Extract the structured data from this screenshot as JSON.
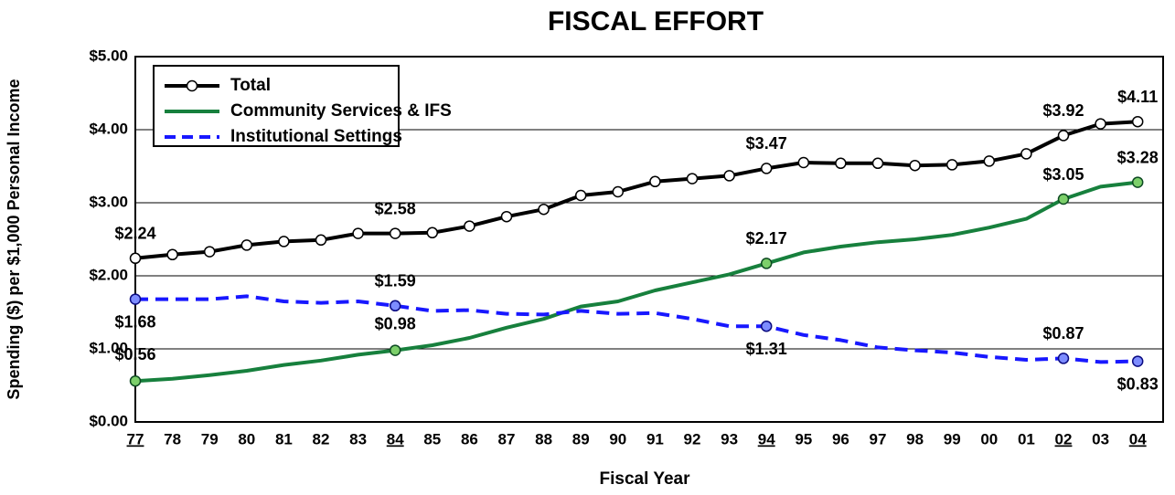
{
  "chart_data": {
    "type": "line",
    "title": "FISCAL EFFORT",
    "ylabel": "Spending ($) per $1,000 Personal Income",
    "xlabel": "Fiscal Year",
    "categories": [
      "77",
      "78",
      "79",
      "80",
      "81",
      "82",
      "83",
      "84",
      "85",
      "86",
      "87",
      "88",
      "89",
      "90",
      "91",
      "92",
      "93",
      "94",
      "95",
      "96",
      "97",
      "98",
      "99",
      "00",
      "01",
      "02",
      "03",
      "04"
    ],
    "ylim": [
      0,
      5
    ],
    "yticks": [
      {
        "value": 0,
        "label": "$0.00"
      },
      {
        "value": 1,
        "label": "$1.00"
      },
      {
        "value": 2,
        "label": "$2.00"
      },
      {
        "value": 3,
        "label": "$3.00"
      },
      {
        "value": 4,
        "label": "$4.00"
      },
      {
        "value": 5,
        "label": "$5.00"
      }
    ],
    "grid": true,
    "legend": "upper left",
    "series": [
      {
        "name": "Total",
        "color": "#000000",
        "dash": false,
        "marker": "all",
        "values": [
          2.24,
          2.29,
          2.33,
          2.42,
          2.47,
          2.49,
          2.58,
          2.58,
          2.59,
          2.68,
          2.81,
          2.91,
          3.1,
          3.15,
          3.29,
          3.33,
          3.37,
          3.47,
          3.55,
          3.54,
          3.54,
          3.51,
          3.52,
          3.57,
          3.67,
          3.92,
          4.08,
          4.11
        ],
        "value_labels": [
          "$2.24",
          null,
          null,
          null,
          null,
          null,
          null,
          "$2.58",
          null,
          null,
          null,
          null,
          null,
          null,
          null,
          null,
          null,
          "$3.47",
          null,
          null,
          null,
          null,
          null,
          null,
          null,
          "$3.92",
          null,
          "$4.11"
        ]
      },
      {
        "name": "Community Services & IFS",
        "color": "#17803d",
        "dash": false,
        "marker": "labeled",
        "values": [
          0.56,
          0.59,
          0.64,
          0.7,
          0.78,
          0.84,
          0.92,
          0.98,
          1.05,
          1.15,
          1.29,
          1.41,
          1.58,
          1.65,
          1.8,
          1.91,
          2.02,
          2.17,
          2.32,
          2.4,
          2.46,
          2.5,
          2.56,
          2.66,
          2.78,
          3.05,
          3.22,
          3.28
        ],
        "value_labels": [
          "$0.56",
          null,
          null,
          null,
          null,
          null,
          null,
          "$0.98",
          null,
          null,
          null,
          null,
          null,
          null,
          null,
          null,
          null,
          "$2.17",
          null,
          null,
          null,
          null,
          null,
          null,
          null,
          "$3.05",
          null,
          "$3.28"
        ]
      },
      {
        "name": "Institutional Settings",
        "color": "#1818ff",
        "dash": true,
        "marker": "labeled",
        "values": [
          1.68,
          1.68,
          1.68,
          1.72,
          1.65,
          1.63,
          1.65,
          1.59,
          1.52,
          1.53,
          1.48,
          1.47,
          1.52,
          1.48,
          1.49,
          1.41,
          1.31,
          1.31,
          1.19,
          1.12,
          1.02,
          0.98,
          0.95,
          0.89,
          0.85,
          0.87,
          0.82,
          0.83
        ],
        "value_labels": [
          "$1.68",
          null,
          null,
          null,
          null,
          null,
          null,
          "$1.59",
          null,
          null,
          null,
          null,
          null,
          null,
          null,
          null,
          null,
          "$1.31",
          null,
          null,
          null,
          null,
          null,
          null,
          null,
          "$0.87",
          null,
          "$0.83"
        ]
      }
    ]
  }
}
